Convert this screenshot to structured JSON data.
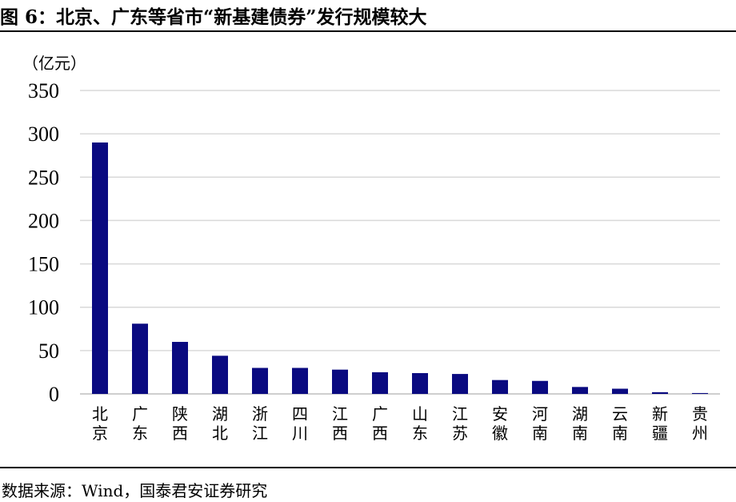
{
  "title": "图 6：北京、广东等省市“新基建债券”发行规模较大",
  "source": "数据来源：Wind，国泰君安证券研究",
  "chart_data": {
    "type": "bar",
    "title": "图 6：北京、广东等省市“新基建债券”发行规模较大",
    "unit_label": "（亿元）",
    "ylim": [
      0,
      350
    ],
    "yticks": [
      0,
      50,
      100,
      150,
      200,
      250,
      300,
      350
    ],
    "grid": true,
    "bar_color": "#0a0a80",
    "grid_color": "#d9d9d9",
    "categories": [
      "北京",
      "广东",
      "陕西",
      "湖北",
      "浙江",
      "四川",
      "江西",
      "广西",
      "山东",
      "江苏",
      "安徽",
      "河南",
      "湖南",
      "云南",
      "新疆",
      "贵州"
    ],
    "values": [
      290,
      81,
      60,
      44,
      30,
      30,
      28,
      25,
      24,
      23,
      16,
      15,
      8,
      6,
      2,
      1
    ]
  }
}
